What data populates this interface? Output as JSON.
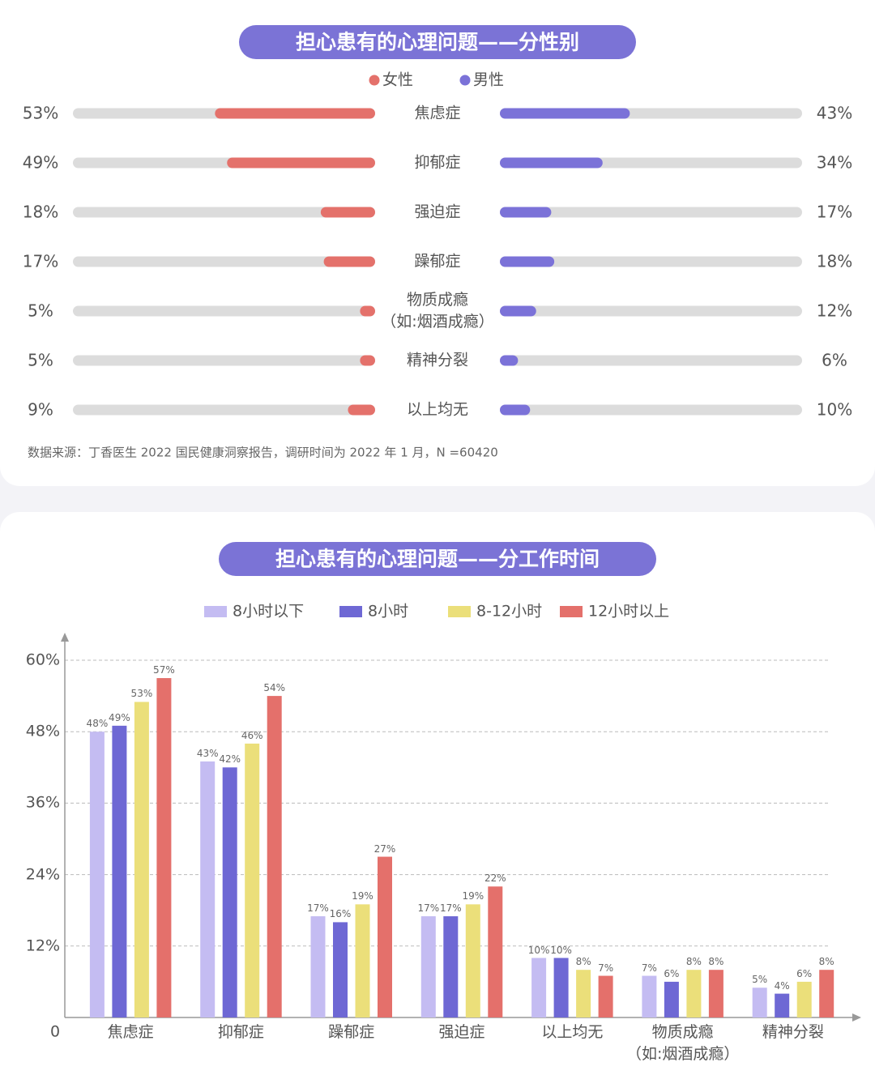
{
  "chart_data": [
    {
      "type": "butterfly",
      "title": "担心患有的心理问题——分性别",
      "categories": [
        "焦虑症",
        "抑郁症",
        "强迫症",
        "躁郁症",
        "物质成瘾\n（如:烟酒成瘾）",
        "精神分裂",
        "以上均无"
      ],
      "series": [
        {
          "name": "女性",
          "color": "#e4716b",
          "values": [
            53,
            49,
            18,
            17,
            5,
            5,
            9
          ],
          "value_labels": [
            "53%",
            "49%",
            "18%",
            "17%",
            "5%",
            "5%",
            "9%"
          ]
        },
        {
          "name": "男性",
          "color": "#7b72d8",
          "values": [
            43,
            34,
            17,
            18,
            12,
            6,
            10
          ],
          "value_labels": [
            "43%",
            "34%",
            "17%",
            "18%",
            "12%",
            "6%",
            "10%"
          ]
        }
      ],
      "xlim": [
        0,
        100
      ],
      "source": "数据来源：丁香医生 2022 国民健康洞察报告，调研时间为 2022 年 1 月，N =60420"
    },
    {
      "type": "bar",
      "title": "担心患有的心理问题——分工作时间",
      "categories": [
        "焦虑症",
        "抑郁症",
        "躁郁症",
        "强迫症",
        "以上均无",
        "物质成瘾\n（如:烟酒成瘾）",
        "精神分裂"
      ],
      "series": [
        {
          "name": "8小时以下",
          "color": "#c4bcf2",
          "values": [
            48,
            43,
            17,
            17,
            10,
            7,
            5
          ],
          "value_labels": [
            "48%",
            "43%",
            "17%",
            "17%",
            "10%",
            "7%",
            "5%"
          ]
        },
        {
          "name": "8小时",
          "color": "#6e68d4",
          "values": [
            49,
            42,
            16,
            17,
            10,
            6,
            4
          ],
          "value_labels": [
            "49%",
            "42%",
            "16%",
            "17%",
            "10%",
            "6%",
            "4%"
          ]
        },
        {
          "name": "8-12小时",
          "color": "#ebdf7a",
          "values": [
            53,
            46,
            19,
            19,
            8,
            8,
            6
          ],
          "value_labels": [
            "53%",
            "46%",
            "19%",
            "19%",
            "8%",
            "8%",
            "6%"
          ]
        },
        {
          "name": "12小时以上",
          "color": "#e4706b",
          "values": [
            57,
            54,
            27,
            22,
            7,
            8,
            8
          ],
          "value_labels": [
            "57%",
            "54%",
            "27%",
            "22%",
            "7%",
            "8%",
            "8%"
          ]
        }
      ],
      "ylim": [
        0,
        60
      ],
      "yticks": [
        0,
        {
          "value": 12,
          "label": "12%"
        },
        {
          "value": 24,
          "label": "24%"
        },
        {
          "value": 36,
          "label": "36%"
        },
        {
          "value": 48,
          "label": "48%"
        },
        {
          "value": 60,
          "label": "60%"
        }
      ],
      "grid": true
    }
  ]
}
